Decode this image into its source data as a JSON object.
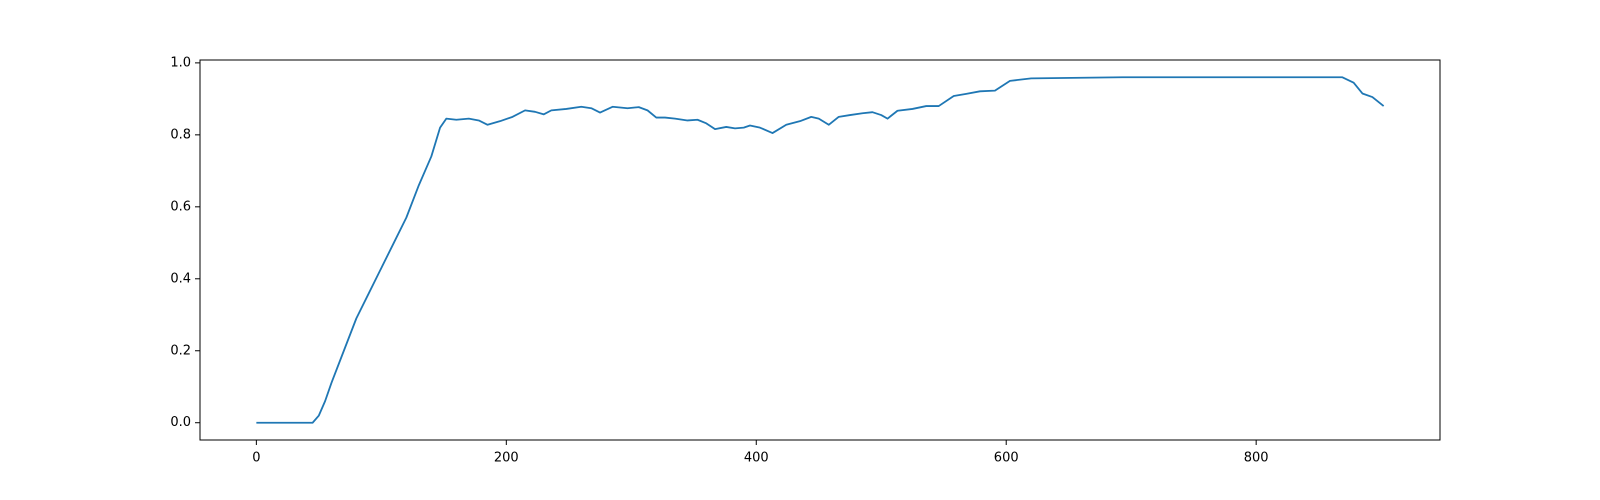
{
  "chart_data": {
    "type": "line",
    "x": [
      0,
      20,
      40,
      45,
      50,
      55,
      60,
      70,
      80,
      90,
      100,
      110,
      120,
      130,
      140,
      147,
      152,
      160,
      170,
      178,
      185,
      195,
      205,
      215,
      223,
      230,
      236,
      248,
      260,
      268,
      275,
      285,
      297,
      306,
      313,
      320,
      327,
      335,
      345,
      353,
      360,
      367,
      376,
      383,
      390,
      395,
      403,
      413,
      424,
      435,
      444,
      450,
      458,
      466,
      475,
      485,
      493,
      500,
      505,
      513,
      525,
      536,
      546,
      558,
      568,
      579,
      591,
      603,
      620,
      693,
      869,
      878,
      885,
      893,
      902
    ],
    "series": [
      {
        "color": "#1f77b4",
        "values": [
          0,
          0,
          0,
          0,
          0.02,
          0.06,
          0.11,
          0.2,
          0.29,
          0.36,
          0.43,
          0.5,
          0.57,
          0.66,
          0.74,
          0.82,
          0.845,
          0.842,
          0.845,
          0.84,
          0.828,
          0.838,
          0.85,
          0.868,
          0.864,
          0.857,
          0.868,
          0.872,
          0.878,
          0.874,
          0.862,
          0.878,
          0.874,
          0.877,
          0.868,
          0.848,
          0.848,
          0.845,
          0.84,
          0.842,
          0.832,
          0.816,
          0.822,
          0.818,
          0.82,
          0.826,
          0.82,
          0.805,
          0.828,
          0.838,
          0.85,
          0.845,
          0.828,
          0.85,
          0.855,
          0.86,
          0.863,
          0.855,
          0.845,
          0.867,
          0.872,
          0.88,
          0.88,
          0.908,
          0.914,
          0.921,
          0.923,
          0.95,
          0.957,
          0.96,
          0.96,
          0.945,
          0.915,
          0.905,
          0.88
        ]
      }
    ],
    "xlim": [
      -45.1,
      947.1
    ],
    "ylim": [
      -0.048,
      1.008
    ],
    "xticks": [
      0,
      200,
      400,
      600,
      800
    ],
    "yticks": [
      {
        "value": 0,
        "label": "0.0"
      },
      {
        "value": 0.2,
        "label": "0.2"
      },
      {
        "value": 0.4,
        "label": "0.4"
      },
      {
        "value": 0.6,
        "label": "0.6"
      },
      {
        "value": 0.8,
        "label": "0.8"
      },
      {
        "value": 1,
        "label": "1.0"
      }
    ]
  }
}
